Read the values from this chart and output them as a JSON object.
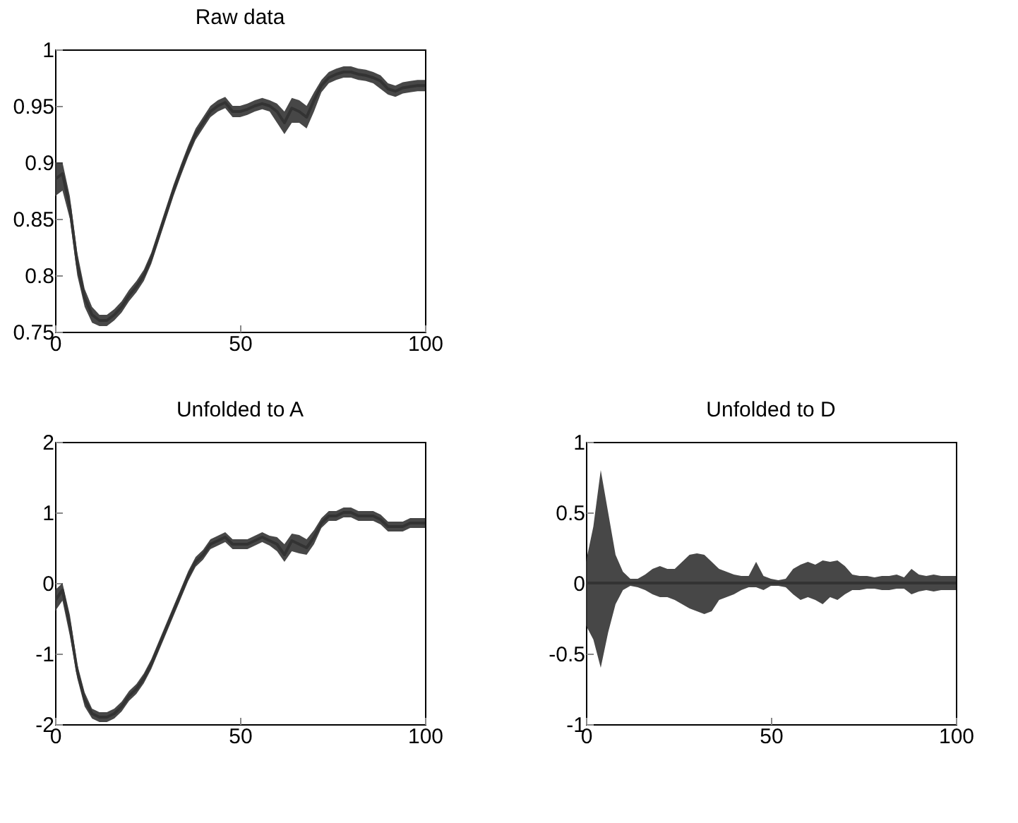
{
  "chart_data": [
    {
      "type": "line",
      "title": "Raw data",
      "x": [
        0,
        2,
        4,
        6,
        8,
        10,
        12,
        14,
        16,
        18,
        20,
        22,
        24,
        26,
        28,
        30,
        32,
        34,
        36,
        38,
        40,
        42,
        44,
        46,
        48,
        50,
        52,
        54,
        56,
        58,
        60,
        62,
        64,
        66,
        68,
        70,
        72,
        74,
        76,
        78,
        80,
        82,
        84,
        86,
        88,
        90,
        92,
        94,
        96,
        98,
        100
      ],
      "xlim": [
        0,
        100
      ],
      "xticks": [
        0,
        50,
        100
      ],
      "ylim": [
        0.75,
        1
      ],
      "yticks": [
        0.75,
        0.8,
        0.85,
        0.9,
        0.95,
        1
      ],
      "series": [
        {
          "color": "#333333",
          "values": [
            0.885,
            0.89,
            0.86,
            0.81,
            0.78,
            0.765,
            0.76,
            0.76,
            0.765,
            0.772,
            0.782,
            0.79,
            0.8,
            0.815,
            0.835,
            0.855,
            0.875,
            0.893,
            0.91,
            0.925,
            0.935,
            0.945,
            0.95,
            0.953,
            0.945,
            0.945,
            0.947,
            0.95,
            0.952,
            0.95,
            0.945,
            0.935,
            0.948,
            0.945,
            0.94,
            0.955,
            0.968,
            0.975,
            0.978,
            0.98,
            0.98,
            0.978,
            0.977,
            0.975,
            0.972,
            0.965,
            0.963,
            0.966,
            0.967,
            0.968,
            0.968
          ],
          "lower": [
            0.87,
            0.875,
            0.85,
            0.8,
            0.772,
            0.758,
            0.755,
            0.755,
            0.76,
            0.767,
            0.777,
            0.785,
            0.795,
            0.81,
            0.83,
            0.85,
            0.87,
            0.888,
            0.905,
            0.92,
            0.93,
            0.94,
            0.945,
            0.948,
            0.94,
            0.94,
            0.942,
            0.945,
            0.947,
            0.945,
            0.935,
            0.925,
            0.935,
            0.935,
            0.93,
            0.945,
            0.962,
            0.97,
            0.973,
            0.975,
            0.975,
            0.973,
            0.972,
            0.97,
            0.965,
            0.96,
            0.958,
            0.961,
            0.962,
            0.963,
            0.963
          ],
          "upper": [
            0.9,
            0.9,
            0.87,
            0.82,
            0.788,
            0.772,
            0.765,
            0.765,
            0.77,
            0.777,
            0.787,
            0.795,
            0.805,
            0.82,
            0.84,
            0.86,
            0.88,
            0.898,
            0.915,
            0.93,
            0.94,
            0.95,
            0.955,
            0.958,
            0.95,
            0.95,
            0.952,
            0.955,
            0.957,
            0.955,
            0.952,
            0.945,
            0.957,
            0.955,
            0.95,
            0.962,
            0.973,
            0.98,
            0.983,
            0.985,
            0.985,
            0.983,
            0.982,
            0.98,
            0.977,
            0.97,
            0.968,
            0.971,
            0.972,
            0.973,
            0.973
          ]
        }
      ]
    },
    {
      "type": "line",
      "title": "Unfolded to A",
      "x": [
        0,
        2,
        4,
        6,
        8,
        10,
        12,
        14,
        16,
        18,
        20,
        22,
        24,
        26,
        28,
        30,
        32,
        34,
        36,
        38,
        40,
        42,
        44,
        46,
        48,
        50,
        52,
        54,
        56,
        58,
        60,
        62,
        64,
        66,
        68,
        70,
        72,
        74,
        76,
        78,
        80,
        82,
        84,
        86,
        88,
        90,
        92,
        94,
        96,
        98,
        100
      ],
      "xlim": [
        0,
        100
      ],
      "xticks": [
        0,
        50,
        100
      ],
      "ylim": [
        -2,
        2
      ],
      "yticks": [
        -2,
        -1,
        0,
        1,
        2
      ],
      "series": [
        {
          "color": "#333333",
          "values": [
            -0.25,
            -0.1,
            -0.6,
            -1.25,
            -1.65,
            -1.85,
            -1.9,
            -1.9,
            -1.85,
            -1.75,
            -1.6,
            -1.5,
            -1.35,
            -1.15,
            -0.9,
            -0.65,
            -0.4,
            -0.15,
            0.1,
            0.3,
            0.4,
            0.55,
            0.6,
            0.65,
            0.55,
            0.55,
            0.55,
            0.6,
            0.65,
            0.6,
            0.55,
            0.4,
            0.6,
            0.55,
            0.5,
            0.65,
            0.85,
            0.95,
            0.95,
            1.0,
            1.0,
            0.95,
            0.95,
            0.95,
            0.9,
            0.8,
            0.8,
            0.8,
            0.85,
            0.85,
            0.85
          ],
          "lower": [
            -0.4,
            -0.25,
            -0.75,
            -1.35,
            -1.75,
            -1.92,
            -1.97,
            -1.97,
            -1.92,
            -1.82,
            -1.67,
            -1.57,
            -1.42,
            -1.22,
            -0.97,
            -0.72,
            -0.47,
            -0.22,
            0.03,
            0.23,
            0.33,
            0.48,
            0.53,
            0.58,
            0.48,
            0.48,
            0.48,
            0.53,
            0.58,
            0.53,
            0.45,
            0.3,
            0.45,
            0.42,
            0.4,
            0.55,
            0.78,
            0.88,
            0.88,
            0.93,
            0.93,
            0.88,
            0.88,
            0.88,
            0.83,
            0.73,
            0.73,
            0.73,
            0.78,
            0.78,
            0.78
          ],
          "upper": [
            -0.1,
            0.0,
            -0.45,
            -1.15,
            -1.55,
            -1.78,
            -1.83,
            -1.83,
            -1.78,
            -1.68,
            -1.53,
            -1.43,
            -1.28,
            -1.08,
            -0.83,
            -0.58,
            -0.33,
            -0.08,
            0.17,
            0.37,
            0.47,
            0.62,
            0.67,
            0.72,
            0.62,
            0.62,
            0.62,
            0.67,
            0.72,
            0.67,
            0.65,
            0.55,
            0.7,
            0.68,
            0.62,
            0.75,
            0.92,
            1.02,
            1.02,
            1.07,
            1.07,
            1.02,
            1.02,
            1.02,
            0.97,
            0.87,
            0.87,
            0.87,
            0.92,
            0.92,
            0.92
          ]
        }
      ]
    },
    {
      "type": "line",
      "title": "Unfolded to D",
      "x": [
        0,
        2,
        4,
        6,
        8,
        10,
        12,
        14,
        16,
        18,
        20,
        22,
        24,
        26,
        28,
        30,
        32,
        34,
        36,
        38,
        40,
        42,
        44,
        46,
        48,
        50,
        52,
        54,
        56,
        58,
        60,
        62,
        64,
        66,
        68,
        70,
        72,
        74,
        76,
        78,
        80,
        82,
        84,
        86,
        88,
        90,
        92,
        94,
        96,
        98,
        100
      ],
      "xlim": [
        0,
        100
      ],
      "xticks": [
        0,
        50,
        100
      ],
      "ylim": [
        -1,
        1
      ],
      "yticks": [
        -1,
        -0.5,
        0,
        0.5,
        1
      ],
      "series": [
        {
          "color": "#333333",
          "values": [
            0,
            0,
            0,
            0,
            0,
            0,
            0,
            0,
            0,
            0,
            0,
            0,
            0,
            0,
            0,
            0,
            0,
            0,
            0,
            0,
            0,
            0,
            0,
            0,
            0,
            0,
            0,
            0,
            0,
            0,
            0,
            0,
            0,
            0,
            0,
            0,
            0,
            0,
            0,
            0,
            0,
            0,
            0,
            0,
            0,
            0,
            0,
            0,
            0,
            0,
            0
          ],
          "lower": [
            -0.3,
            -0.4,
            -0.6,
            -0.35,
            -0.15,
            -0.05,
            -0.02,
            -0.03,
            -0.05,
            -0.08,
            -0.1,
            -0.1,
            -0.12,
            -0.15,
            -0.18,
            -0.2,
            -0.22,
            -0.2,
            -0.12,
            -0.1,
            -0.08,
            -0.05,
            -0.03,
            -0.03,
            -0.05,
            -0.02,
            -0.02,
            -0.03,
            -0.08,
            -0.12,
            -0.1,
            -0.12,
            -0.15,
            -0.1,
            -0.12,
            -0.08,
            -0.05,
            -0.05,
            -0.04,
            -0.04,
            -0.05,
            -0.05,
            -0.04,
            -0.04,
            -0.08,
            -0.06,
            -0.05,
            -0.06,
            -0.05,
            -0.05,
            -0.05
          ],
          "upper": [
            0.15,
            0.4,
            0.8,
            0.5,
            0.2,
            0.08,
            0.03,
            0.03,
            0.06,
            0.1,
            0.12,
            0.1,
            0.1,
            0.15,
            0.2,
            0.21,
            0.2,
            0.15,
            0.1,
            0.08,
            0.06,
            0.05,
            0.05,
            0.15,
            0.05,
            0.03,
            0.02,
            0.03,
            0.1,
            0.13,
            0.15,
            0.13,
            0.16,
            0.15,
            0.16,
            0.12,
            0.06,
            0.05,
            0.05,
            0.04,
            0.05,
            0.05,
            0.06,
            0.04,
            0.1,
            0.06,
            0.05,
            0.06,
            0.05,
            0.05,
            0.05
          ]
        }
      ]
    }
  ]
}
